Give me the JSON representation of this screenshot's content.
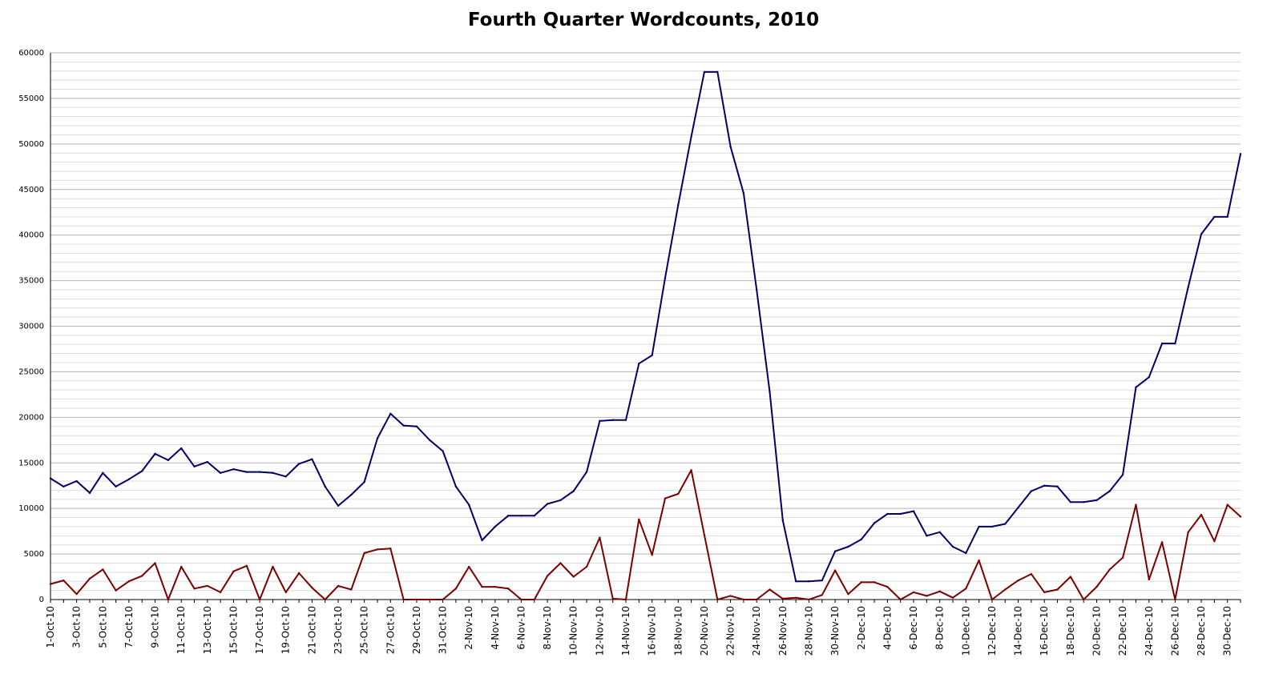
{
  "chart_data": {
    "type": "line",
    "title": "Fourth Quarter Wordcounts, 2010",
    "xlabel": "",
    "ylabel": "",
    "ylim": [
      0,
      60000
    ],
    "y_ticks": [
      0,
      5000,
      10000,
      15000,
      20000,
      25000,
      30000,
      35000,
      40000,
      45000,
      50000,
      55000,
      60000
    ],
    "grid": {
      "major": true,
      "minor": true
    },
    "legend": "none",
    "categories": [
      "1-Oct-10",
      "2-Oct-10",
      "3-Oct-10",
      "4-Oct-10",
      "5-Oct-10",
      "6-Oct-10",
      "7-Oct-10",
      "8-Oct-10",
      "9-Oct-10",
      "10-Oct-10",
      "11-Oct-10",
      "12-Oct-10",
      "13-Oct-10",
      "14-Oct-10",
      "15-Oct-10",
      "16-Oct-10",
      "17-Oct-10",
      "18-Oct-10",
      "19-Oct-10",
      "20-Oct-10",
      "21-Oct-10",
      "22-Oct-10",
      "23-Oct-10",
      "24-Oct-10",
      "25-Oct-10",
      "26-Oct-10",
      "27-Oct-10",
      "28-Oct-10",
      "29-Oct-10",
      "30-Oct-10",
      "31-Oct-10",
      "1-Nov-10",
      "2-Nov-10",
      "3-Nov-10",
      "4-Nov-10",
      "5-Nov-10",
      "6-Nov-10",
      "7-Nov-10",
      "8-Nov-10",
      "9-Nov-10",
      "10-Nov-10",
      "11-Nov-10",
      "12-Nov-10",
      "13-Nov-10",
      "14-Nov-10",
      "15-Nov-10",
      "16-Nov-10",
      "17-Nov-10",
      "18-Nov-10",
      "19-Nov-10",
      "20-Nov-10",
      "21-Nov-10",
      "22-Nov-10",
      "23-Nov-10",
      "24-Nov-10",
      "25-Nov-10",
      "26-Nov-10",
      "27-Nov-10",
      "28-Nov-10",
      "29-Nov-10",
      "30-Nov-10",
      "1-Dec-10",
      "2-Dec-10",
      "3-Dec-10",
      "4-Dec-10",
      "5-Dec-10",
      "6-Dec-10",
      "7-Dec-10",
      "8-Dec-10",
      "9-Dec-10",
      "10-Dec-10",
      "11-Dec-10",
      "12-Dec-10",
      "13-Dec-10",
      "14-Dec-10",
      "15-Dec-10",
      "16-Dec-10",
      "17-Dec-10",
      "18-Dec-10",
      "19-Dec-10",
      "20-Dec-10",
      "21-Dec-10",
      "22-Dec-10",
      "23-Dec-10",
      "24-Dec-10",
      "25-Dec-10",
      "26-Dec-10",
      "27-Dec-10",
      "28-Dec-10",
      "29-Dec-10",
      "30-Dec-10",
      "31-Dec-10"
    ],
    "tick_labels": [
      "1-Oct-10",
      "3-Oct-10",
      "5-Oct-10",
      "7-Oct-10",
      "9-Oct-10",
      "11-Oct-10",
      "13-Oct-10",
      "15-Oct-10",
      "17-Oct-10",
      "19-Oct-10",
      "21-Oct-10",
      "23-Oct-10",
      "25-Oct-10",
      "27-Oct-10",
      "29-Oct-10",
      "31-Oct-10",
      "2-Nov-10",
      "4-Nov-10",
      "6-Nov-10",
      "8-Nov-10",
      "10-Nov-10",
      "12-Nov-10",
      "14-Nov-10",
      "16-Nov-10",
      "18-Nov-10",
      "20-Nov-10",
      "22-Nov-10",
      "24-Nov-10",
      "26-Nov-10",
      "28-Nov-10",
      "30-Nov-10",
      "2-Dec-10",
      "4-Dec-10",
      "6-Dec-10",
      "8-Dec-10",
      "10-Dec-10",
      "12-Dec-10",
      "14-Dec-10",
      "16-Dec-10",
      "18-Dec-10",
      "20-Dec-10",
      "22-Dec-10",
      "24-Dec-10",
      "26-Dec-10",
      "28-Dec-10",
      "30-Dec-10"
    ],
    "series": [
      {
        "color": "#000066",
        "values": [
          13300,
          12400,
          13000,
          11700,
          13900,
          12400,
          13200,
          14100,
          16000,
          15300,
          16600,
          14600,
          15100,
          13900,
          14300,
          14000,
          14000,
          13900,
          13500,
          14900,
          15400,
          12400,
          10300,
          11500,
          12900,
          17700,
          20400,
          19100,
          19000,
          17500,
          16300,
          12400,
          10400,
          6500,
          8000,
          9200,
          9200,
          9200,
          10500,
          10900,
          11900,
          14000,
          19600,
          19700,
          19700,
          25900,
          26800,
          35300,
          43300,
          50800,
          57900,
          57900,
          49700,
          44600,
          34000,
          22800,
          8700,
          2000,
          2000,
          2100,
          5300,
          5800,
          6600,
          8400,
          9400,
          9400,
          9700,
          7000,
          7400,
          5800,
          5100,
          8000,
          8000,
          8300,
          10100,
          11900,
          12500,
          12400,
          10700,
          10700,
          10900,
          11900,
          13700,
          23300,
          24400,
          28100,
          28100,
          34300,
          40100,
          42000,
          42000,
          48900
        ]
      },
      {
        "color": "#7a0000",
        "values": [
          1700,
          2100,
          600,
          2300,
          3300,
          1000,
          2000,
          2600,
          4000,
          0,
          3600,
          1200,
          1500,
          800,
          3100,
          3700,
          0,
          3600,
          800,
          2900,
          1300,
          0,
          1500,
          1100,
          5100,
          5500,
          5600,
          0,
          0,
          0,
          0,
          1200,
          3600,
          1400,
          1400,
          1200,
          0,
          0,
          2600,
          4000,
          2500,
          3600,
          6800,
          100,
          0,
          8800,
          4900,
          11100,
          11600,
          14200,
          7100,
          0,
          400,
          0,
          0,
          1100,
          100,
          200,
          0,
          500,
          3200,
          600,
          1900,
          1900,
          1400,
          0,
          800,
          400,
          900,
          200,
          1200,
          4300,
          0,
          1100,
          2100,
          2800,
          800,
          1100,
          2500,
          0,
          1400,
          3300,
          4600,
          10400,
          2200,
          6300,
          0,
          7400,
          9300,
          6400,
          10400,
          9100
        ]
      }
    ]
  }
}
